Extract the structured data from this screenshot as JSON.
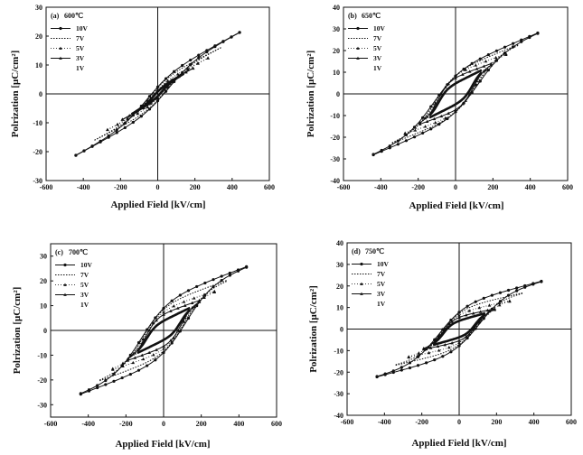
{
  "figure": {
    "colors": {
      "ink": "#111111",
      "paper": "#ffffff"
    }
  },
  "chart_data": [
    {
      "type": "line",
      "panel_label": "(a)",
      "title": "600℃",
      "xlabel": "Applied Field [kV/cm]",
      "ylabel": "Polrization [μC/cm²]",
      "xlim": [
        -600,
        600
      ],
      "ylim": [
        -30,
        30
      ],
      "xticks": [
        -600,
        -400,
        -200,
        0,
        200,
        400,
        600
      ],
      "yticks": [
        -30,
        -20,
        -10,
        0,
        10,
        20,
        30
      ],
      "legend_position": "top-left",
      "series": [
        {
          "name": "10V",
          "style": "line-circle",
          "loop": {
            "Emax": 440,
            "Pmax": 24,
            "Pr": 6,
            "Ec": 60
          }
        },
        {
          "name": "7V",
          "style": "dotted",
          "loop": {
            "Emax": 340,
            "Pmax": 18,
            "Pr": 5,
            "Ec": 50
          }
        },
        {
          "name": "5V",
          "style": "triangle",
          "loop": {
            "Emax": 270,
            "Pmax": 14,
            "Pr": 3.5,
            "Ec": 40
          }
        },
        {
          "name": "3V",
          "style": "line-triangle",
          "loop": {
            "Emax": 190,
            "Pmax": 10,
            "Pr": 2.5,
            "Ec": 30
          }
        },
        {
          "name": "1V",
          "style": "thick",
          "loop": {
            "Emax": 140,
            "Pmax": 8,
            "Pr": 1.5,
            "Ec": 25
          }
        }
      ],
      "negative_extent": {
        "Emin": -550,
        "Pmin": -23
      }
    },
    {
      "type": "line",
      "panel_label": "(b)",
      "title": "650℃",
      "xlabel": "Applied Field [kV/cm]",
      "ylabel": "Polrization [μC/cm²]",
      "xlim": [
        -600,
        600
      ],
      "ylim": [
        -40,
        40
      ],
      "xticks": [
        -600,
        -400,
        -200,
        0,
        200,
        400,
        600
      ],
      "yticks": [
        -40,
        -30,
        -20,
        -10,
        0,
        10,
        20,
        30,
        40
      ],
      "legend_position": "top-left",
      "series": [
        {
          "name": "10V",
          "style": "line-circle",
          "loop": {
            "Emax": 440,
            "Pmax": 31,
            "Pr": 12,
            "Ec": 120
          }
        },
        {
          "name": "7V",
          "style": "dotted",
          "loop": {
            "Emax": 340,
            "Pmax": 25,
            "Pr": 11,
            "Ec": 110
          }
        },
        {
          "name": "5V",
          "style": "triangle",
          "loop": {
            "Emax": 270,
            "Pmax": 20,
            "Pr": 10,
            "Ec": 100
          }
        },
        {
          "name": "3V",
          "style": "line-triangle",
          "loop": {
            "Emax": 190,
            "Pmax": 15,
            "Pr": 8,
            "Ec": 95
          }
        },
        {
          "name": "1V",
          "style": "thick",
          "loop": {
            "Emax": 140,
            "Pmax": 12,
            "Pr": 5,
            "Ec": 90
          }
        }
      ],
      "negative_extent": {
        "Emin": -540,
        "Pmin": -30
      }
    },
    {
      "type": "line",
      "panel_label": "(c)",
      "title": "700℃",
      "xlabel": "Applied Field [kV/cm]",
      "ylabel": "Polrization [μC/cm²]",
      "xlim": [
        -600,
        600
      ],
      "ylim": [
        -35,
        35
      ],
      "xticks": [
        -600,
        -400,
        -200,
        0,
        200,
        400,
        600
      ],
      "yticks": [
        -30,
        -20,
        -10,
        0,
        10,
        20,
        30
      ],
      "legend_position": "top-left",
      "series": [
        {
          "name": "10V",
          "style": "line-circle",
          "loop": {
            "Emax": 440,
            "Pmax": 28,
            "Pr": 13,
            "Ec": 120
          }
        },
        {
          "name": "7V",
          "style": "dotted",
          "loop": {
            "Emax": 340,
            "Pmax": 22,
            "Pr": 11,
            "Ec": 110
          }
        },
        {
          "name": "5V",
          "style": "triangle",
          "loop": {
            "Emax": 270,
            "Pmax": 17,
            "Pr": 9,
            "Ec": 100
          }
        },
        {
          "name": "3V",
          "style": "line-triangle",
          "loop": {
            "Emax": 190,
            "Pmax": 13,
            "Pr": 7,
            "Ec": 95
          }
        },
        {
          "name": "1V",
          "style": "thick",
          "loop": {
            "Emax": 140,
            "Pmax": 10,
            "Pr": 4,
            "Ec": 90
          }
        }
      ],
      "negative_extent": {
        "Emin": -550,
        "Pmin": -27
      }
    },
    {
      "type": "line",
      "panel_label": "(d)",
      "title": "750℃",
      "xlabel": "Applied Field [kV/cm]",
      "ylabel": "Polrization [μC/cm²]",
      "xlim": [
        -600,
        600
      ],
      "ylim": [
        -40,
        40
      ],
      "xticks": [
        -600,
        -400,
        -200,
        0,
        200,
        400,
        600
      ],
      "yticks": [
        -40,
        -30,
        -20,
        -10,
        0,
        10,
        20,
        30,
        40
      ],
      "legend_position": "top-left",
      "series": [
        {
          "name": "10V",
          "style": "line-circle",
          "loop": {
            "Emax": 440,
            "Pmax": 24,
            "Pr": 12,
            "Ec": 110
          }
        },
        {
          "name": "7V",
          "style": "dotted",
          "loop": {
            "Emax": 340,
            "Pmax": 18,
            "Pr": 10,
            "Ec": 100
          }
        },
        {
          "name": "5V",
          "style": "triangle",
          "loop": {
            "Emax": 270,
            "Pmax": 14,
            "Pr": 8,
            "Ec": 95
          }
        },
        {
          "name": "3V",
          "style": "line-triangle",
          "loop": {
            "Emax": 190,
            "Pmax": 10,
            "Pr": 6,
            "Ec": 90
          }
        },
        {
          "name": "1V",
          "style": "thick",
          "loop": {
            "Emax": 140,
            "Pmax": 8,
            "Pr": 4,
            "Ec": 85
          }
        }
      ],
      "negative_extent": {
        "Emin": -550,
        "Pmin": -23
      }
    }
  ]
}
